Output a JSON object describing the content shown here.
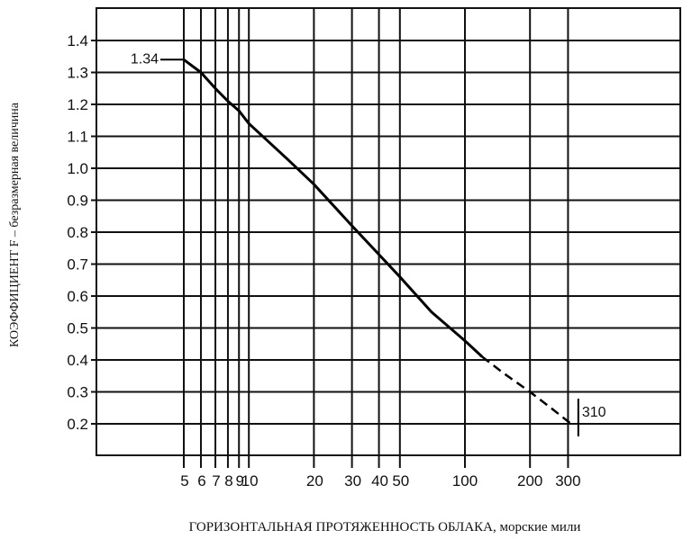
{
  "chart_data": {
    "type": "line",
    "xlabel": "ГОРИЗОНТАЛЬНАЯ ПРОТЯЖЕННОСТЬ ОБЛАКА, морские мили",
    "ylabel": "КОЭФФИЦИЕНТ F – безразмерная величина",
    "xscale": "log",
    "xlim": [
      5,
      420
    ],
    "ylim": [
      0.1,
      1.5
    ],
    "grid": true,
    "xticks": [
      5,
      6,
      7,
      8,
      9,
      10,
      20,
      30,
      40,
      50,
      100,
      200,
      300
    ],
    "xtick_labels": [
      "5",
      "6",
      "7",
      "8",
      "9",
      "10",
      "20",
      "30",
      "40",
      "50",
      "100",
      "200",
      "300"
    ],
    "yticks": [
      0.2,
      0.3,
      0.4,
      0.5,
      0.6,
      0.7,
      0.8,
      0.9,
      1.0,
      1.1,
      1.2,
      1.3,
      1.4
    ],
    "ytick_labels": [
      "0.2",
      "0.3",
      "0.4",
      "0.5",
      "0.6",
      "0.7",
      "0.8",
      "0.9",
      "1.0",
      "1.1",
      "1.2",
      "1.3",
      "1.4"
    ],
    "series": [
      {
        "style": "solid",
        "x": [
          5,
          6,
          7,
          8,
          9,
          10,
          15,
          20,
          30,
          40,
          50,
          70,
          100,
          120
        ],
        "y": [
          1.34,
          1.3,
          1.25,
          1.21,
          1.18,
          1.14,
          1.03,
          0.95,
          0.82,
          0.73,
          0.66,
          0.55,
          0.46,
          0.41
        ]
      },
      {
        "style": "dashed",
        "x": [
          120,
          150,
          200,
          250,
          310
        ],
        "y": [
          0.41,
          0.36,
          0.3,
          0.25,
          0.2
        ]
      }
    ],
    "annotations": [
      {
        "text": "1.34",
        "x": 5,
        "y": 1.34
      },
      {
        "text": "310",
        "x": 310,
        "y": 0.2
      }
    ]
  }
}
